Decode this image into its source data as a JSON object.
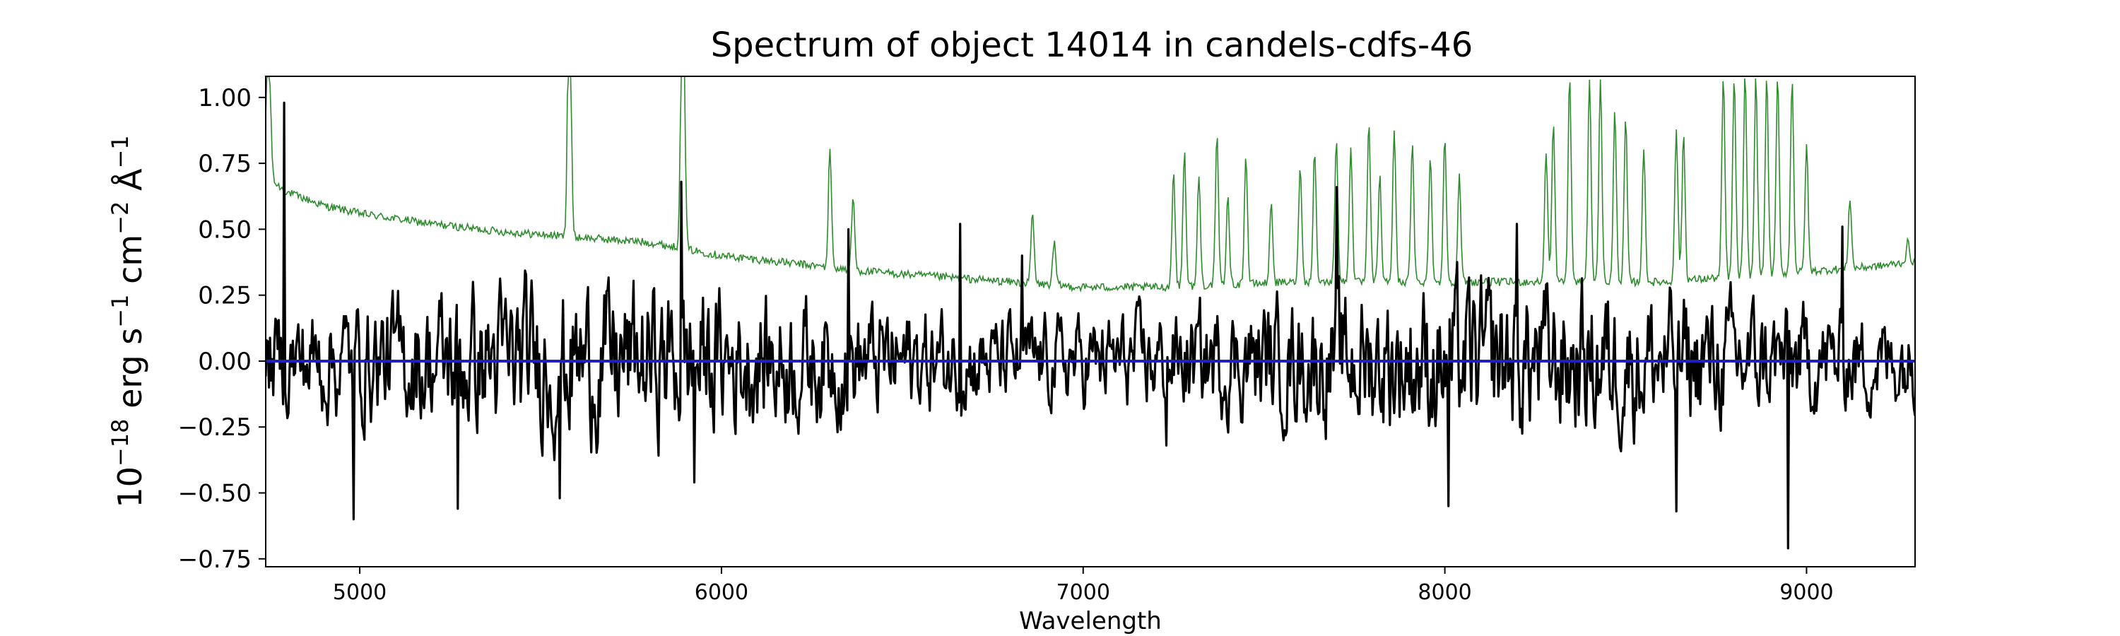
{
  "chart_data": {
    "type": "line",
    "title": "Spectrum of object 14014 in candels-cdfs-46",
    "xlabel": "Wavelength",
    "ylabel_parts": [
      "10",
      "−18",
      " erg s",
      "−1",
      " cm",
      "−2",
      " Å",
      "−1"
    ],
    "xlim": [
      4740,
      9300
    ],
    "ylim": [
      -0.78,
      1.08
    ],
    "x_ticks": [
      5000,
      6000,
      7000,
      8000,
      9000
    ],
    "x_tick_labels": [
      "5000",
      "6000",
      "7000",
      "8000",
      "9000"
    ],
    "y_ticks": [
      -0.75,
      -0.5,
      -0.25,
      0.0,
      0.25,
      0.5,
      0.75,
      1.0
    ],
    "y_tick_labels": [
      "−0.75",
      "−0.50",
      "−0.25",
      "0.00",
      "0.25",
      "0.50",
      "0.75",
      "1.00"
    ],
    "grid": false,
    "legend": "none",
    "series": [
      {
        "role": "noise",
        "color": "#2e8b2e",
        "sample_step": 3,
        "baseline": [
          [
            4740,
            0.72
          ],
          [
            4760,
            0.68
          ],
          [
            4800,
            0.64
          ],
          [
            4900,
            0.59
          ],
          [
            5000,
            0.56
          ],
          [
            5200,
            0.52
          ],
          [
            5400,
            0.49
          ],
          [
            5600,
            0.47
          ],
          [
            5800,
            0.45
          ],
          [
            6000,
            0.4
          ],
          [
            6200,
            0.37
          ],
          [
            6400,
            0.34
          ],
          [
            6600,
            0.32
          ],
          [
            6800,
            0.3
          ],
          [
            7000,
            0.28
          ],
          [
            7200,
            0.28
          ],
          [
            7400,
            0.29
          ],
          [
            7600,
            0.3
          ],
          [
            7800,
            0.3
          ],
          [
            8000,
            0.3
          ],
          [
            8200,
            0.3
          ],
          [
            8400,
            0.3
          ],
          [
            8600,
            0.3
          ],
          [
            8800,
            0.32
          ],
          [
            9000,
            0.34
          ],
          [
            9200,
            0.36
          ],
          [
            9300,
            0.38
          ]
        ],
        "peaks": [
          [
            4745,
            1.08
          ],
          [
            4752,
            0.95
          ],
          [
            5578,
            1.08
          ],
          [
            5581,
            1.08
          ],
          [
            5890,
            1.08
          ],
          [
            5896,
            1.08
          ],
          [
            6300,
            0.81
          ],
          [
            6364,
            0.62
          ],
          [
            6860,
            0.56
          ],
          [
            6920,
            0.45
          ],
          [
            7250,
            0.72
          ],
          [
            7280,
            0.8
          ],
          [
            7320,
            0.7
          ],
          [
            7370,
            0.85
          ],
          [
            7400,
            0.62
          ],
          [
            7450,
            0.78
          ],
          [
            7520,
            0.6
          ],
          [
            7600,
            0.75
          ],
          [
            7640,
            0.8
          ],
          [
            7700,
            0.85
          ],
          [
            7740,
            0.82
          ],
          [
            7790,
            0.9
          ],
          [
            7820,
            0.7
          ],
          [
            7860,
            0.88
          ],
          [
            7910,
            0.82
          ],
          [
            7960,
            0.78
          ],
          [
            8000,
            0.85
          ],
          [
            8040,
            0.7
          ],
          [
            8280,
            0.8
          ],
          [
            8300,
            0.9
          ],
          [
            8345,
            1.08
          ],
          [
            8400,
            1.08
          ],
          [
            8430,
            1.08
          ],
          [
            8470,
            0.95
          ],
          [
            8500,
            0.92
          ],
          [
            8550,
            0.8
          ],
          [
            8640,
            0.88
          ],
          [
            8660,
            0.86
          ],
          [
            8770,
            1.08
          ],
          [
            8800,
            1.08
          ],
          [
            8830,
            1.08
          ],
          [
            8860,
            1.08
          ],
          [
            8890,
            1.08
          ],
          [
            8920,
            1.08
          ],
          [
            8960,
            1.08
          ],
          [
            9000,
            0.82
          ],
          [
            9120,
            0.62
          ],
          [
            9280,
            0.45
          ]
        ]
      },
      {
        "role": "flux",
        "color": "#000000",
        "sample_step": 3,
        "extremes": [
          [
            4790,
            0.98
          ],
          [
            4983,
            -0.6
          ],
          [
            5270,
            -0.56
          ],
          [
            5553,
            -0.52
          ],
          [
            5890,
            0.68
          ],
          [
            5925,
            -0.46
          ],
          [
            6350,
            0.5
          ],
          [
            6660,
            0.52
          ],
          [
            6830,
            0.4
          ],
          [
            7230,
            -0.32
          ],
          [
            7700,
            0.66
          ],
          [
            8010,
            -0.55
          ],
          [
            8200,
            0.52
          ],
          [
            8640,
            -0.57
          ],
          [
            8950,
            -0.71
          ],
          [
            9100,
            0.51
          ]
        ]
      },
      {
        "role": "zero-line",
        "color": "#1f1fbf",
        "values": [
          [
            4740,
            0.0
          ],
          [
            9300,
            0.0
          ]
        ]
      }
    ]
  }
}
